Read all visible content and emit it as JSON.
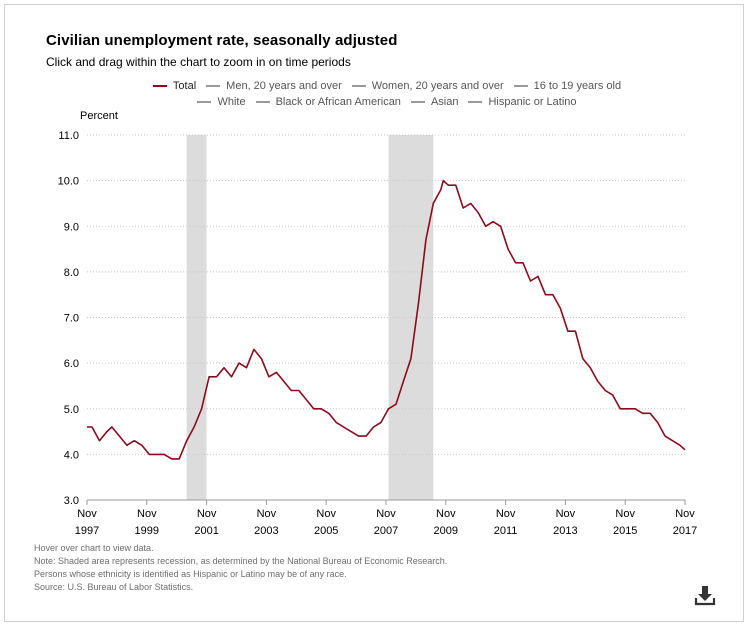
{
  "header": {
    "title": "Civilian unemployment rate, seasonally adjusted",
    "subtitle": "Click and drag within the chart to zoom in on time periods"
  },
  "legend": {
    "row1": [
      "Total",
      "Men, 20 years and over",
      "Women, 20 years and over",
      "16 to 19 years old"
    ],
    "row2": [
      "White",
      "Black or African American",
      "Asian",
      "Hispanic or Latino"
    ]
  },
  "notes": [
    "Hover over chart to view data.",
    "Note: Shaded area represents recession, as determined by the National Bureau of Economic Research.",
    "Persons whose ethnicity is identified as Hispanic or Latino may be of any race.",
    "Source: U.S. Bureau of Labor Statistics."
  ],
  "colors": {
    "series": "#8b0a1c",
    "recession": "#dcdcdc",
    "grid": "#c8c8c8",
    "inactive": "#999999"
  },
  "download_icon": "download-icon",
  "chart_data": {
    "type": "line",
    "ylabel": "Percent",
    "ylim": [
      3.0,
      11.0
    ],
    "yticks": [
      "3.0",
      "4.0",
      "5.0",
      "6.0",
      "7.0",
      "8.0",
      "9.0",
      "10.0",
      "11.0"
    ],
    "xlim": [
      "1997-11",
      "2017-11"
    ],
    "xticks": [
      {
        "month": "Nov",
        "year": "1997"
      },
      {
        "month": "Nov",
        "year": "1999"
      },
      {
        "month": "Nov",
        "year": "2001"
      },
      {
        "month": "Nov",
        "year": "2003"
      },
      {
        "month": "Nov",
        "year": "2005"
      },
      {
        "month": "Nov",
        "year": "2007"
      },
      {
        "month": "Nov",
        "year": "2009"
      },
      {
        "month": "Nov",
        "year": "2011"
      },
      {
        "month": "Nov",
        "year": "2013"
      },
      {
        "month": "Nov",
        "year": "2015"
      },
      {
        "month": "Nov",
        "year": "2017"
      }
    ],
    "grid": true,
    "legend_position": "top",
    "recessions": [
      [
        "2001-03",
        "2001-11"
      ],
      [
        "2007-12",
        "2009-06"
      ]
    ],
    "series": [
      {
        "name": "Total",
        "x": [
          "1997-11",
          "1998-01",
          "1998-04",
          "1998-07",
          "1998-09",
          "1998-12",
          "1999-03",
          "1999-06",
          "1999-09",
          "1999-12",
          "2000-03",
          "2000-06",
          "2000-09",
          "2000-12",
          "2001-03",
          "2001-06",
          "2001-09",
          "2001-12",
          "2002-03",
          "2002-06",
          "2002-09",
          "2002-12",
          "2003-03",
          "2003-06",
          "2003-09",
          "2003-12",
          "2004-03",
          "2004-06",
          "2004-09",
          "2004-12",
          "2005-03",
          "2005-06",
          "2005-09",
          "2005-12",
          "2006-03",
          "2006-06",
          "2006-09",
          "2006-12",
          "2007-03",
          "2007-06",
          "2007-09",
          "2007-12",
          "2008-03",
          "2008-06",
          "2008-09",
          "2008-12",
          "2009-03",
          "2009-06",
          "2009-09",
          "2009-10",
          "2009-12",
          "2010-03",
          "2010-06",
          "2010-09",
          "2010-12",
          "2011-03",
          "2011-06",
          "2011-09",
          "2011-12",
          "2012-03",
          "2012-06",
          "2012-09",
          "2012-12",
          "2013-03",
          "2013-06",
          "2013-09",
          "2013-12",
          "2014-03",
          "2014-06",
          "2014-09",
          "2014-12",
          "2015-03",
          "2015-06",
          "2015-09",
          "2015-12",
          "2016-03",
          "2016-06",
          "2016-09",
          "2016-12",
          "2017-03",
          "2017-06",
          "2017-09",
          "2017-11"
        ],
        "y": [
          4.6,
          4.6,
          4.3,
          4.5,
          4.6,
          4.4,
          4.2,
          4.3,
          4.2,
          4.0,
          4.0,
          4.0,
          3.9,
          3.9,
          4.3,
          4.6,
          5.0,
          5.7,
          5.7,
          5.9,
          5.7,
          6.0,
          5.9,
          6.3,
          6.1,
          5.7,
          5.8,
          5.6,
          5.4,
          5.4,
          5.2,
          5.0,
          5.0,
          4.9,
          4.7,
          4.6,
          4.5,
          4.4,
          4.4,
          4.6,
          4.7,
          5.0,
          5.1,
          5.6,
          6.1,
          7.3,
          8.7,
          9.5,
          9.8,
          10.0,
          9.9,
          9.9,
          9.4,
          9.5,
          9.3,
          9.0,
          9.1,
          9.0,
          8.5,
          8.2,
          8.2,
          7.8,
          7.9,
          7.5,
          7.5,
          7.2,
          6.7,
          6.7,
          6.1,
          5.9,
          5.6,
          5.4,
          5.3,
          5.0,
          5.0,
          5.0,
          4.9,
          4.9,
          4.7,
          4.4,
          4.3,
          4.2,
          4.1
        ]
      }
    ]
  }
}
